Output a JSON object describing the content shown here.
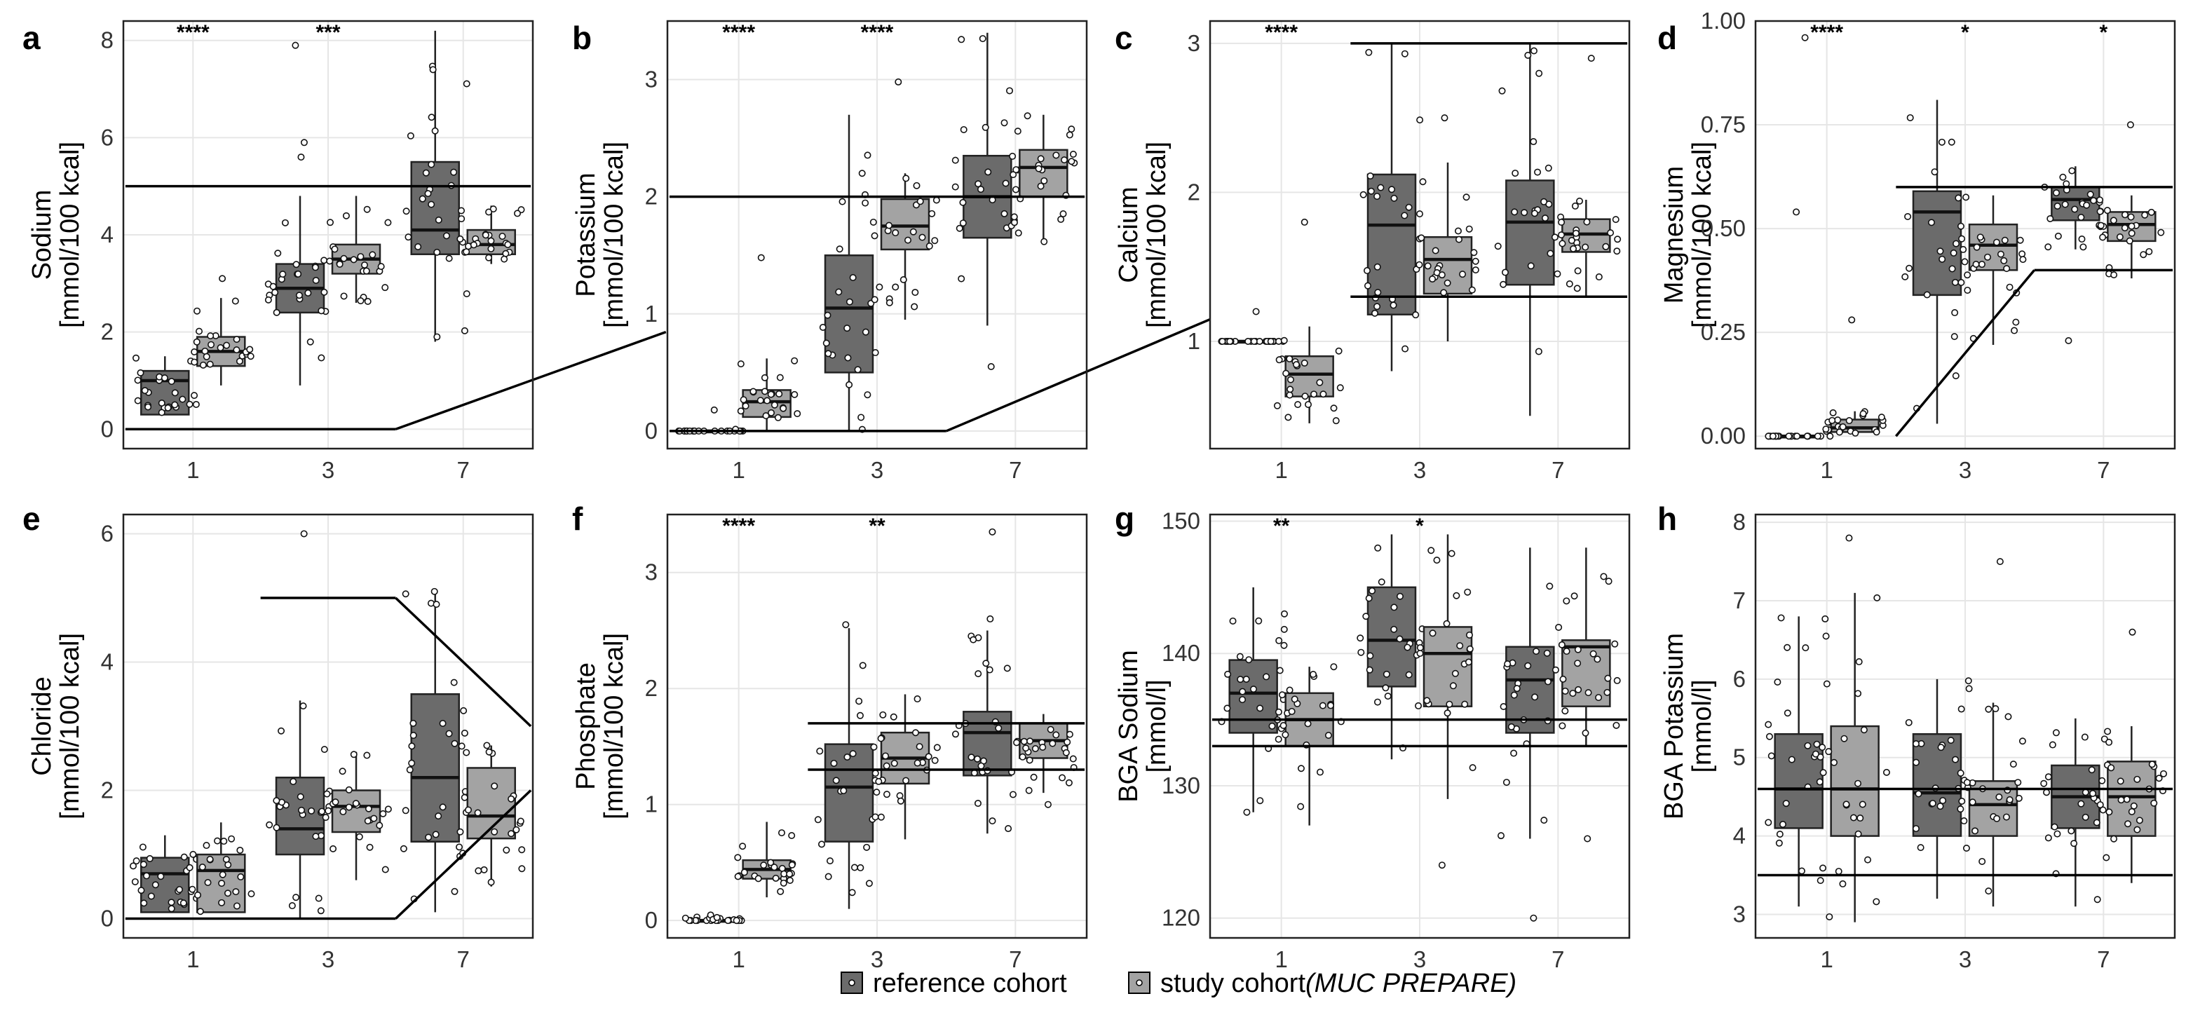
{
  "figure": {
    "legend": {
      "reference_label": "reference cohort",
      "study_label_plain": "study cohort",
      "study_label_italic": "(MUC PREPARE)"
    },
    "colors": {
      "reference": "#6b6b6b",
      "study": "#a3a3a3",
      "grid": "#e6e6e6",
      "line": "#000000"
    }
  },
  "chart_data": [
    {
      "id": "a",
      "letter": "a",
      "type": "box",
      "ylabel": [
        "Sodium",
        "[mmol/100 kcal]"
      ],
      "ylim": [
        -0.4,
        8.4
      ],
      "yticks": [
        0,
        2,
        4,
        6,
        8
      ],
      "ytick_labels": [
        "0",
        "2",
        "4",
        "6",
        "8"
      ],
      "categories": [
        "1",
        "3",
        "7"
      ],
      "significance": [
        "****",
        "***",
        ""
      ],
      "series": [
        {
          "name": "reference cohort",
          "boxes": [
            {
              "min": 0.3,
              "q1": 0.3,
              "median": 1.0,
              "q3": 1.2,
              "max": 1.5
            },
            {
              "min": 0.9,
              "q1": 2.4,
              "median": 2.9,
              "q3": 3.4,
              "max": 4.8
            },
            {
              "min": 1.8,
              "q1": 3.6,
              "median": 4.1,
              "q3": 5.5,
              "max": 8.2
            }
          ]
        },
        {
          "name": "study cohort (MUC PREPARE)",
          "boxes": [
            {
              "min": 0.9,
              "q1": 1.3,
              "median": 1.6,
              "q3": 1.9,
              "max": 2.7
            },
            {
              "min": 2.6,
              "q1": 3.2,
              "median": 3.5,
              "q3": 3.8,
              "max": 4.8
            },
            {
              "min": 3.4,
              "q1": 3.6,
              "median": 3.8,
              "q3": 4.1,
              "max": 4.6
            }
          ]
        }
      ],
      "ref_lines": [
        {
          "x1": 0.5,
          "y1": 5,
          "x2": 3.5,
          "y2": 5
        },
        {
          "x1": 0.5,
          "y1": 0,
          "x2": 2.5,
          "y2": 0
        },
        {
          "x1": 2.5,
          "y1": 0,
          "x2": 4.5,
          "y2": 2
        }
      ],
      "outliers": [
        {
          "g": 2,
          "s": 0,
          "y": 7.9
        },
        {
          "g": 2,
          "s": 0,
          "y": 5.9
        },
        {
          "g": 2,
          "s": 0,
          "y": 5.6
        },
        {
          "g": 1,
          "s": 1,
          "y": 3.1
        },
        {
          "g": 3,
          "s": 0,
          "y": 7.4
        },
        {
          "g": 3,
          "s": 0,
          "y": 1.9
        }
      ]
    },
    {
      "id": "b",
      "letter": "b",
      "type": "box",
      "ylabel": [
        "Potassium",
        "[mmol/100 kcal]"
      ],
      "ylim": [
        -0.15,
        3.5
      ],
      "yticks": [
        0,
        1,
        2,
        3
      ],
      "ytick_labels": [
        "0",
        "1",
        "2",
        "3"
      ],
      "categories": [
        "1",
        "3",
        "7"
      ],
      "significance": [
        "****",
        "****",
        ""
      ],
      "series": [
        {
          "name": "reference cohort",
          "boxes": [
            {
              "min": 0,
              "q1": 0,
              "median": 0,
              "q3": 0,
              "max": 0
            },
            {
              "min": 0,
              "q1": 0.5,
              "median": 1.05,
              "q3": 1.5,
              "max": 2.7
            },
            {
              "min": 0.9,
              "q1": 1.65,
              "median": 2.0,
              "q3": 2.35,
              "max": 3.4
            }
          ]
        },
        {
          "name": "study cohort (MUC PREPARE)",
          "boxes": [
            {
              "min": 0,
              "q1": 0.12,
              "median": 0.25,
              "q3": 0.35,
              "max": 0.62
            },
            {
              "min": 0.95,
              "q1": 1.55,
              "median": 1.75,
              "q3": 1.98,
              "max": 2.2
            },
            {
              "min": 1.6,
              "q1": 2.0,
              "median": 2.25,
              "q3": 2.4,
              "max": 2.7
            }
          ]
        }
      ],
      "ref_lines": [
        {
          "x1": 0.5,
          "y1": 2,
          "x2": 3.5,
          "y2": 2
        },
        {
          "x1": 0.5,
          "y1": 0,
          "x2": 2.5,
          "y2": 0
        },
        {
          "x1": 2.5,
          "y1": 0,
          "x2": 4.5,
          "y2": 1
        }
      ],
      "outliers": [
        {
          "g": 1,
          "s": 1,
          "y": 1.48
        },
        {
          "g": 2,
          "s": 1,
          "y": 2.98
        },
        {
          "g": 3,
          "s": 0,
          "y": 3.35
        },
        {
          "g": 3,
          "s": 0,
          "y": 0.55
        },
        {
          "g": 1,
          "s": 0,
          "y": 0.18
        }
      ]
    },
    {
      "id": "c",
      "letter": "c",
      "type": "box",
      "ylabel": [
        "Calcium",
        "[mmol/100 kcal]"
      ],
      "ylim": [
        0.28,
        3.15
      ],
      "yticks": [
        1,
        2,
        3
      ],
      "ytick_labels": [
        "1",
        "2",
        "3"
      ],
      "categories": [
        "1",
        "3",
        "7"
      ],
      "significance": [
        "****",
        "",
        ""
      ],
      "series": [
        {
          "name": "reference cohort",
          "boxes": [
            {
              "min": 1.0,
              "q1": 1.0,
              "median": 1.0,
              "q3": 1.0,
              "max": 1.0
            },
            {
              "min": 0.8,
              "q1": 1.18,
              "median": 1.78,
              "q3": 2.12,
              "max": 3.0
            },
            {
              "min": 0.5,
              "q1": 1.38,
              "median": 1.8,
              "q3": 2.08,
              "max": 3.0
            }
          ]
        },
        {
          "name": "study cohort (MUC PREPARE)",
          "boxes": [
            {
              "min": 0.45,
              "q1": 0.63,
              "median": 0.78,
              "q3": 0.9,
              "max": 1.1
            },
            {
              "min": 1.0,
              "q1": 1.32,
              "median": 1.55,
              "q3": 1.7,
              "max": 2.2
            },
            {
              "min": 1.3,
              "q1": 1.6,
              "median": 1.72,
              "q3": 1.82,
              "max": 1.95
            }
          ]
        }
      ],
      "ref_lines": [
        {
          "x1": 1.5,
          "y1": 3,
          "x2": 3.5,
          "y2": 3
        },
        {
          "x1": 1.5,
          "y1": 1.3,
          "x2": 3.5,
          "y2": 1.3
        }
      ],
      "outliers": [
        {
          "g": 1,
          "s": 1,
          "y": 1.8
        },
        {
          "g": 1,
          "s": 0,
          "y": 1.2
        },
        {
          "g": 3,
          "s": 0,
          "y": 2.95
        },
        {
          "g": 3,
          "s": 1,
          "y": 2.9
        },
        {
          "g": 2,
          "s": 1,
          "y": 2.5
        }
      ]
    },
    {
      "id": "d",
      "letter": "d",
      "type": "box",
      "ylabel": [
        "Magnesium",
        "[mmol/100 kcal]"
      ],
      "ylim": [
        -0.03,
        1.0
      ],
      "yticks": [
        0,
        0.25,
        0.5,
        0.75,
        1.0
      ],
      "ytick_labels": [
        "0.00",
        "0.25",
        "0.50",
        "0.75",
        "1.00"
      ],
      "categories": [
        "1",
        "3",
        "7"
      ],
      "significance": [
        "****",
        "*",
        "*"
      ],
      "series": [
        {
          "name": "reference cohort",
          "boxes": [
            {
              "min": 0,
              "q1": 0,
              "median": 0,
              "q3": 0,
              "max": 0
            },
            {
              "min": 0.03,
              "q1": 0.34,
              "median": 0.54,
              "q3": 0.59,
              "max": 0.81
            },
            {
              "min": 0.45,
              "q1": 0.52,
              "median": 0.57,
              "q3": 0.6,
              "max": 0.65
            }
          ]
        },
        {
          "name": "study cohort (MUC PREPARE)",
          "boxes": [
            {
              "min": 0,
              "q1": 0.01,
              "median": 0.02,
              "q3": 0.04,
              "max": 0.06
            },
            {
              "min": 0.22,
              "q1": 0.4,
              "median": 0.46,
              "q3": 0.51,
              "max": 0.58
            },
            {
              "min": 0.38,
              "q1": 0.47,
              "median": 0.51,
              "q3": 0.54,
              "max": 0.58
            }
          ]
        }
      ],
      "ref_lines": [
        {
          "x1": 1.5,
          "y1": 0.6,
          "x2": 3.5,
          "y2": 0.6
        },
        {
          "x1": 1.5,
          "y1": 0.0,
          "x2": 2.5,
          "y2": 0.4
        },
        {
          "x1": 2.5,
          "y1": 0.4,
          "x2": 3.5,
          "y2": 0.4
        }
      ],
      "outliers": [
        {
          "g": 1,
          "s": 0,
          "y": 0.96
        },
        {
          "g": 1,
          "s": 0,
          "y": 0.54
        },
        {
          "g": 1,
          "s": 1,
          "y": 0.28
        },
        {
          "g": 3,
          "s": 1,
          "y": 0.75
        },
        {
          "g": 3,
          "s": 0,
          "y": 0.23
        }
      ]
    },
    {
      "id": "e",
      "letter": "e",
      "type": "box",
      "ylabel": [
        "Chloride",
        "[mmol/100 kcal]"
      ],
      "ylim": [
        -0.3,
        6.3
      ],
      "yticks": [
        0,
        2,
        4,
        6
      ],
      "ytick_labels": [
        "0",
        "2",
        "4",
        "6"
      ],
      "categories": [
        "1",
        "3",
        "7"
      ],
      "significance": [
        "",
        "",
        ""
      ],
      "series": [
        {
          "name": "reference cohort",
          "boxes": [
            {
              "min": 0.1,
              "q1": 0.1,
              "median": 0.7,
              "q3": 0.95,
              "max": 1.3
            },
            {
              "min": 0,
              "q1": 1.0,
              "median": 1.4,
              "q3": 2.2,
              "max": 3.4
            },
            {
              "min": 0.1,
              "q1": 1.2,
              "median": 2.2,
              "q3": 3.5,
              "max": 5.1
            }
          ]
        },
        {
          "name": "study cohort (MUC PREPARE)",
          "boxes": [
            {
              "min": 0.1,
              "q1": 0.1,
              "median": 0.75,
              "q3": 1.0,
              "max": 1.5
            },
            {
              "min": 0.6,
              "q1": 1.35,
              "median": 1.75,
              "q3": 2.0,
              "max": 2.6
            },
            {
              "min": 0.5,
              "q1": 1.25,
              "median": 1.6,
              "q3": 2.35,
              "max": 2.7
            }
          ]
        }
      ],
      "ref_lines": [
        {
          "x1": 1.5,
          "y1": 5,
          "x2": 2.5,
          "y2": 5
        },
        {
          "x1": 2.5,
          "y1": 5,
          "x2": 3.5,
          "y2": 3
        },
        {
          "x1": 0.5,
          "y1": 0,
          "x2": 2.5,
          "y2": 0
        },
        {
          "x1": 2.5,
          "y1": 0,
          "x2": 3.5,
          "y2": 2
        }
      ],
      "outliers": [
        {
          "g": 2,
          "s": 0,
          "y": 6.0
        },
        {
          "g": 3,
          "s": 0,
          "y": 5.1
        },
        {
          "g": 3,
          "s": 0,
          "y": 4.9
        },
        {
          "g": 3,
          "s": 1,
          "y": 2.7
        }
      ]
    },
    {
      "id": "f",
      "letter": "f",
      "type": "box",
      "ylabel": [
        "Phosphate",
        "[mmol/100 kcal]"
      ],
      "ylim": [
        -0.15,
        3.5
      ],
      "yticks": [
        0,
        1,
        2,
        3
      ],
      "ytick_labels": [
        "0",
        "1",
        "2",
        "3"
      ],
      "categories": [
        "1",
        "3",
        "7"
      ],
      "significance": [
        "****",
        "**",
        ""
      ],
      "series": [
        {
          "name": "reference cohort",
          "boxes": [
            {
              "min": 0,
              "q1": 0,
              "median": 0,
              "q3": 0,
              "max": 0.05
            },
            {
              "min": 0.1,
              "q1": 0.68,
              "median": 1.15,
              "q3": 1.52,
              "max": 2.52
            },
            {
              "min": 0.75,
              "q1": 1.25,
              "median": 1.62,
              "q3": 1.8,
              "max": 2.5
            }
          ]
        },
        {
          "name": "study cohort (MUC PREPARE)",
          "boxes": [
            {
              "min": 0.2,
              "q1": 0.36,
              "median": 0.44,
              "q3": 0.52,
              "max": 0.85
            },
            {
              "min": 0.7,
              "q1": 1.18,
              "median": 1.4,
              "q3": 1.62,
              "max": 1.95
            },
            {
              "min": 1.1,
              "q1": 1.4,
              "median": 1.55,
              "q3": 1.7,
              "max": 1.78
            }
          ]
        }
      ],
      "ref_lines": [
        {
          "x1": 1.5,
          "y1": 1.7,
          "x2": 3.5,
          "y2": 1.7
        },
        {
          "x1": 1.5,
          "y1": 1.3,
          "x2": 3.5,
          "y2": 1.3
        }
      ],
      "outliers": [
        {
          "g": 3,
          "s": 0,
          "y": 3.35
        },
        {
          "g": 3,
          "s": 0,
          "y": 2.6
        },
        {
          "g": 2,
          "s": 0,
          "y": 2.55
        },
        {
          "g": 3,
          "s": 1,
          "y": 1.0
        }
      ]
    },
    {
      "id": "g",
      "letter": "g",
      "type": "box",
      "ylabel": [
        "BGA Sodium",
        "[mmol/l]"
      ],
      "ylim": [
        118.5,
        150.5
      ],
      "yticks": [
        120,
        130,
        140,
        150
      ],
      "ytick_labels": [
        "120",
        "130",
        "140",
        "150"
      ],
      "categories": [
        "1",
        "3",
        "7"
      ],
      "significance": [
        "**",
        "*",
        ""
      ],
      "series": [
        {
          "name": "reference cohort",
          "boxes": [
            {
              "min": 128,
              "q1": 134,
              "median": 137,
              "q3": 139.5,
              "max": 145
            },
            {
              "min": 132,
              "q1": 137.5,
              "median": 141,
              "q3": 145,
              "max": 149
            },
            {
              "min": 126,
              "q1": 134,
              "median": 138,
              "q3": 140.5,
              "max": 148
            }
          ]
        },
        {
          "name": "study cohort (MUC PREPARE)",
          "boxes": [
            {
              "min": 127,
              "q1": 133,
              "median": 135,
              "q3": 137,
              "max": 139
            },
            {
              "min": 129,
              "q1": 136,
              "median": 140,
              "q3": 142,
              "max": 149
            },
            {
              "min": 133,
              "q1": 136,
              "median": 140.5,
              "q3": 141,
              "max": 148
            }
          ]
        }
      ],
      "ref_lines": [
        {
          "x1": 0.5,
          "y1": 135,
          "x2": 3.5,
          "y2": 135
        },
        {
          "x1": 0.5,
          "y1": 133,
          "x2": 3.5,
          "y2": 133
        }
      ],
      "outliers": [
        {
          "g": 3,
          "s": 0,
          "y": 120
        },
        {
          "g": 2,
          "s": 1,
          "y": 124
        },
        {
          "g": 3,
          "s": 1,
          "y": 126
        },
        {
          "g": 1,
          "s": 0,
          "y": 128
        }
      ]
    },
    {
      "id": "h",
      "letter": "h",
      "type": "box",
      "ylabel": [
        "BGA Potassium",
        "[mmol/l]"
      ],
      "ylim": [
        2.7,
        8.1
      ],
      "yticks": [
        3,
        4,
        5,
        6,
        7,
        8
      ],
      "ytick_labels": [
        "3",
        "4",
        "5",
        "6",
        "7",
        "8"
      ],
      "categories": [
        "1",
        "3",
        "7"
      ],
      "significance": [
        "",
        "",
        ""
      ],
      "series": [
        {
          "name": "reference cohort",
          "boxes": [
            {
              "min": 3.1,
              "q1": 4.1,
              "median": 4.6,
              "q3": 5.3,
              "max": 6.8
            },
            {
              "min": 3.2,
              "q1": 4.0,
              "median": 4.55,
              "q3": 5.3,
              "max": 6.0
            },
            {
              "min": 3.1,
              "q1": 4.1,
              "median": 4.5,
              "q3": 4.9,
              "max": 5.5
            }
          ]
        },
        {
          "name": "study cohort (MUC PREPARE)",
          "boxes": [
            {
              "min": 2.9,
              "q1": 4.0,
              "median": 4.6,
              "q3": 5.4,
              "max": 7.1
            },
            {
              "min": 3.1,
              "q1": 4.0,
              "median": 4.4,
              "q3": 4.7,
              "max": 5.7
            },
            {
              "min": 3.4,
              "q1": 4.0,
              "median": 4.5,
              "q3": 4.95,
              "max": 5.4
            }
          ]
        }
      ],
      "ref_lines": [
        {
          "x1": 0.5,
          "y1": 4.6,
          "x2": 3.5,
          "y2": 4.6
        },
        {
          "x1": 0.5,
          "y1": 3.5,
          "x2": 3.5,
          "y2": 3.5
        }
      ],
      "outliers": [
        {
          "g": 1,
          "s": 1,
          "y": 7.8
        },
        {
          "g": 2,
          "s": 1,
          "y": 7.5
        },
        {
          "g": 3,
          "s": 1,
          "y": 6.6
        },
        {
          "g": 1,
          "s": 0,
          "y": 6.4
        }
      ]
    }
  ]
}
